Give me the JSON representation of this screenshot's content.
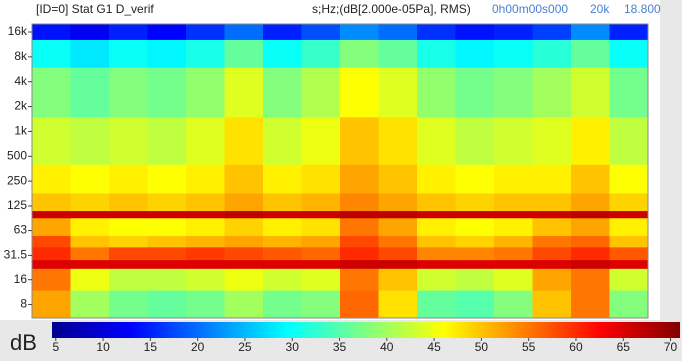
{
  "header": {
    "title": "[ID=0] Stat G1 D_verif",
    "units": "s;Hz;(dB[2.000e-05Pa], RMS)",
    "time": "0h00m00s000",
    "freq": "20k",
    "level": "18.800"
  },
  "chart_data": {
    "type": "spectrogram",
    "log_y": true,
    "ylim": [
      5.5,
      20000
    ],
    "yticks": [
      {
        "value": 16000,
        "label": "16k"
      },
      {
        "value": 8000,
        "label": "8k"
      },
      {
        "value": 4000,
        "label": "4k"
      },
      {
        "value": 2000,
        "label": "2k"
      },
      {
        "value": 1000,
        "label": "1k"
      },
      500,
      250,
      125,
      63,
      31.5,
      16,
      8
    ],
    "ybins": [
      5.5,
      12,
      22,
      28,
      40,
      55,
      90,
      110,
      180,
      400,
      1500,
      6000,
      13000,
      20000
    ],
    "z": [
      [
        52,
        40,
        37,
        36,
        37,
        40,
        37,
        38,
        56,
        48,
        36,
        35,
        38,
        50,
        55,
        38
      ],
      [
        55,
        45,
        42,
        42,
        43,
        45,
        43,
        44,
        55,
        50,
        43,
        42,
        44,
        52,
        55,
        43
      ],
      [
        65,
        65,
        65,
        65,
        65,
        65,
        65,
        65,
        66,
        66,
        65,
        65,
        65,
        65,
        66,
        65
      ],
      [
        60,
        55,
        58,
        58,
        59,
        58,
        57,
        56,
        60,
        58,
        54,
        54,
        55,
        58,
        60,
        57
      ],
      [
        58,
        50,
        49,
        50,
        51,
        52,
        51,
        52,
        58,
        55,
        50,
        49,
        51,
        55,
        56,
        50
      ],
      [
        52,
        47,
        46,
        46,
        47,
        49,
        47,
        48,
        55,
        52,
        47,
        46,
        47,
        50,
        52,
        47
      ],
      [
        66,
        66,
        66,
        66,
        66,
        67,
        66,
        66,
        67,
        67,
        66,
        66,
        66,
        66,
        67,
        66
      ],
      [
        50,
        49,
        50,
        49,
        50,
        52,
        50,
        51,
        54,
        52,
        50,
        49,
        50,
        50,
        52,
        49
      ],
      [
        47,
        46,
        47,
        46,
        47,
        50,
        47,
        48,
        52,
        50,
        47,
        46,
        47,
        47,
        50,
        46
      ],
      [
        43,
        42,
        43,
        42,
        44,
        48,
        43,
        45,
        50,
        48,
        44,
        42,
        43,
        44,
        47,
        42
      ],
      [
        38,
        36,
        38,
        37,
        39,
        44,
        38,
        41,
        46,
        44,
        39,
        37,
        38,
        40,
        43,
        37
      ],
      [
        30,
        28,
        30,
        29,
        31,
        36,
        30,
        33,
        38,
        36,
        31,
        29,
        30,
        32,
        36,
        30
      ],
      [
        14,
        12,
        15,
        13,
        16,
        20,
        15,
        18,
        22,
        20,
        16,
        14,
        15,
        17,
        22,
        15
      ]
    ],
    "colormap": [
      "#00008f",
      "#0000ff",
      "#0080ff",
      "#00ffff",
      "#80ff80",
      "#ffff00",
      "#ff8000",
      "#ff0000",
      "#800000"
    ],
    "colorbar": {
      "label": "dB",
      "lim": [
        4.6,
        71
      ],
      "ticks": [
        5,
        10,
        15,
        20,
        25,
        30,
        35,
        40,
        45,
        50,
        55,
        60,
        65,
        70
      ]
    }
  }
}
